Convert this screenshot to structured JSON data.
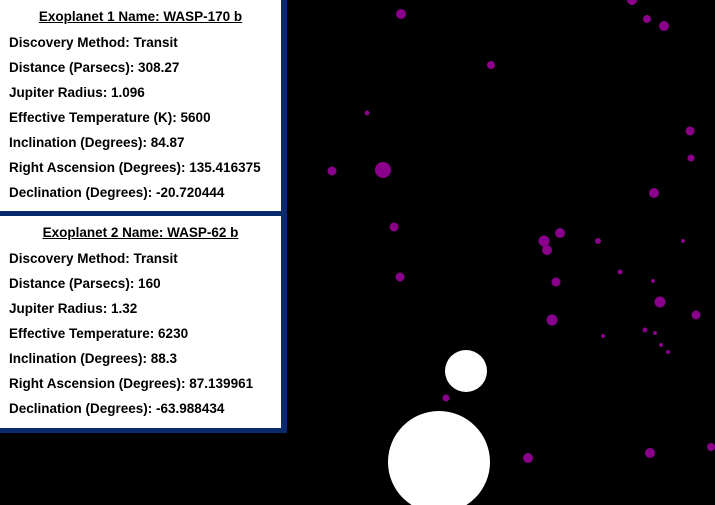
{
  "exoplanets": [
    {
      "title": "Exoplanet 1 Name: WASP-170 b",
      "rows": [
        "Discovery Method: Transit",
        "Distance (Parsecs): 308.27",
        "Jupiter Radius: 1.096",
        "Effective Temperature (K): 5600",
        "Inclination (Degrees): 84.87",
        "Right Ascension (Degrees): 135.416375",
        "Declination (Degrees): -20.720444"
      ]
    },
    {
      "title": "Exoplanet 2 Name: WASP-62 b",
      "rows": [
        "Discovery Method: Transit",
        "Distance (Parsecs): 160",
        "Jupiter Radius: 1.32",
        "Effective Temperature: 6230",
        "Inclination (Degrees): 88.3",
        "Right Ascension (Degrees): 87.139961",
        "Declination (Degrees): -63.988434"
      ]
    }
  ],
  "colors": {
    "background": "#000000",
    "panel_border": "#0b2a6e",
    "exoplanet_dot": "#8b008b",
    "host_star": "#ffffff"
  }
}
